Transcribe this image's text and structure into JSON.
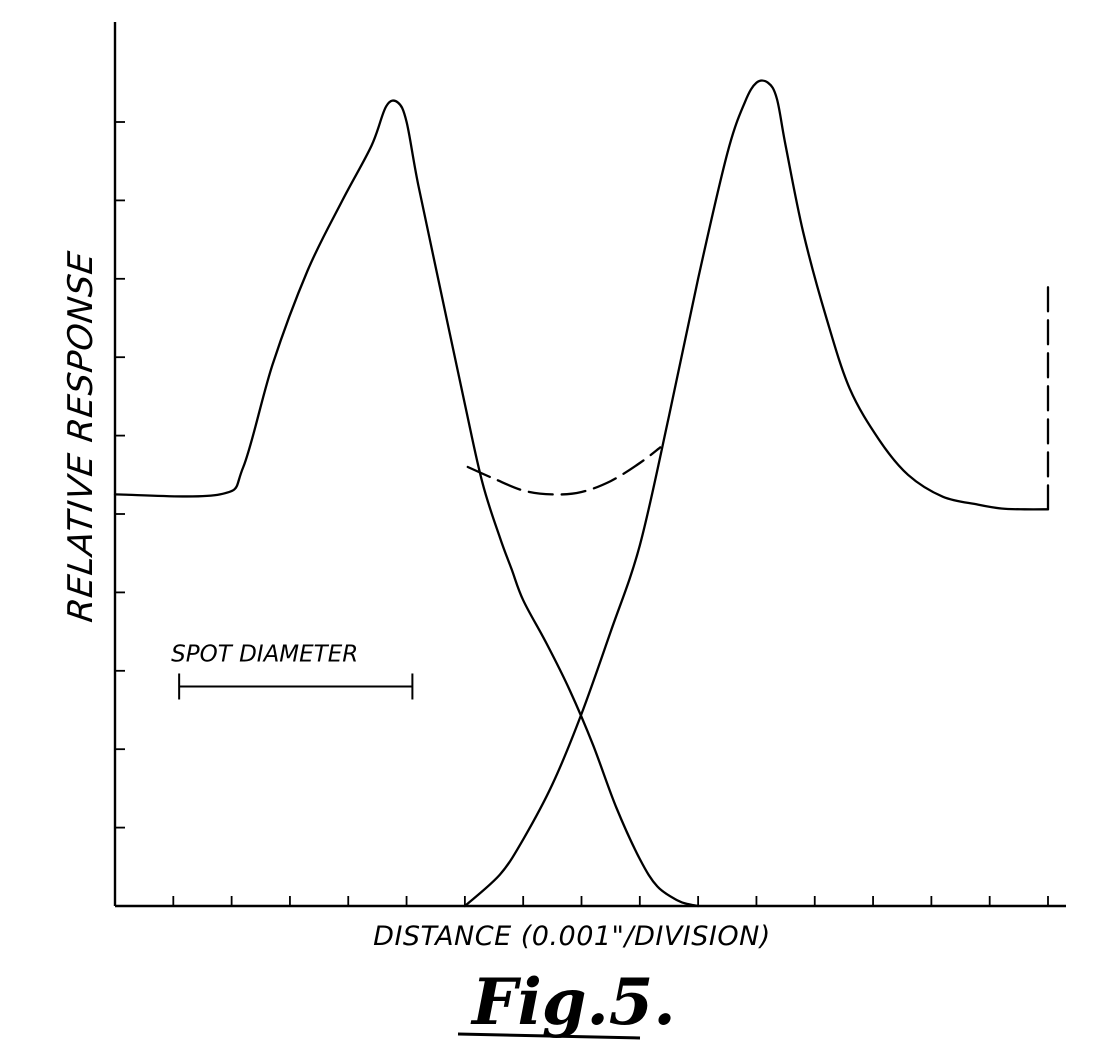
{
  "chart_data": {
    "type": "line",
    "title": "",
    "xlabel": "DISTANCE (0.001\"/DIVISION)",
    "ylabel": "RELATIVE RESPONSE",
    "caption": "Fig.5.",
    "xlim": [
      0,
      16
    ],
    "ylim": [
      0,
      10
    ],
    "grid": false,
    "x_ticks": [
      0,
      1,
      2,
      3,
      4,
      5,
      6,
      7,
      8,
      9,
      10,
      11,
      12,
      13,
      14,
      15,
      16
    ],
    "y_ticks": [
      0,
      1,
      2,
      3,
      4,
      5,
      6,
      7,
      8,
      9,
      10
    ],
    "annotations": [
      {
        "text": "SPOT DIAMETER",
        "x_start": 1.1,
        "x_end": 5.1,
        "y": 2.8
      }
    ],
    "series": [
      {
        "style": "solid",
        "x": [
          0,
          1.8,
          2.2,
          2.7,
          3.3,
          3.9,
          4.4,
          4.65,
          4.85,
          5.0,
          5.2,
          5.6,
          6.0,
          6.3,
          6.6,
          6.8,
          7.0,
          7.4,
          7.8,
          8.2,
          8.6,
          9.0,
          9.3,
          9.65,
          9.85,
          10.0
        ],
        "y": [
          5.25,
          5.25,
          5.6,
          6.9,
          8.1,
          9.0,
          9.7,
          10.2,
          10.25,
          10.0,
          9.2,
          7.8,
          6.4,
          5.4,
          4.7,
          4.3,
          3.9,
          3.35,
          2.75,
          2.05,
          1.25,
          0.6,
          0.25,
          0.07,
          0.02,
          0.0
        ]
      },
      {
        "style": "solid",
        "x": [
          6.0,
          6.6,
          7.0,
          7.5,
          8.0,
          8.5,
          9.0,
          9.5,
          10.0,
          10.5,
          10.8,
          11.0,
          11.2,
          11.35,
          11.5,
          11.8,
          12.2,
          12.6,
          13.1,
          13.6,
          14.2,
          14.8,
          15.2,
          15.6,
          16.0
        ],
        "y": [
          0.0,
          0.4,
          0.85,
          1.55,
          2.45,
          3.5,
          4.6,
          6.25,
          8.0,
          9.6,
          10.25,
          10.5,
          10.5,
          10.3,
          9.7,
          8.6,
          7.5,
          6.6,
          5.95,
          5.5,
          5.22,
          5.12,
          5.07,
          5.06,
          5.06
        ]
      },
      {
        "style": "dashed",
        "x": [
          6.05,
          6.5,
          7.0,
          7.5,
          8.0,
          8.5,
          9.0,
          9.35
        ],
        "y": [
          5.6,
          5.45,
          5.3,
          5.25,
          5.28,
          5.42,
          5.65,
          5.85
        ]
      },
      {
        "style": "dashed",
        "x": [
          16.0,
          16.0
        ],
        "y": [
          5.06,
          8.0
        ]
      }
    ]
  }
}
